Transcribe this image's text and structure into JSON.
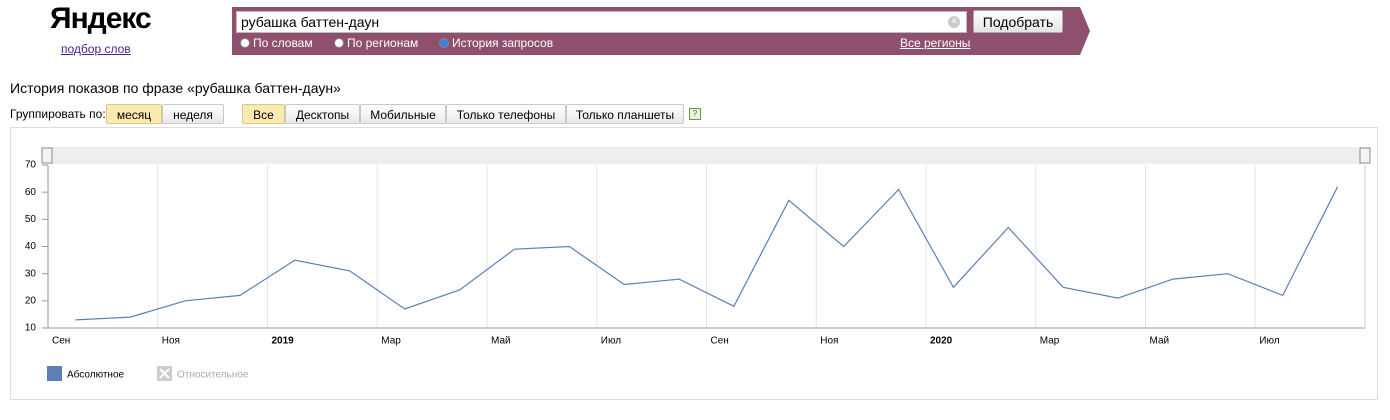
{
  "header": {
    "logo": "Яндекс",
    "sublink": "подбор слов",
    "query": "рубашка баттен-даун",
    "button": "Подобрать",
    "radios": [
      "По словам",
      "По регионам",
      "История запросов"
    ],
    "region_link": "Все регионы"
  },
  "heading": "История показов по фразе «рубашка баттен-даун»",
  "group_label": "Группировать по:",
  "group_options": [
    "месяц",
    "неделя"
  ],
  "device_options": [
    "Все",
    "Десктопы",
    "Мобильные",
    "Только телефоны",
    "Только планшеты"
  ],
  "help": "?",
  "chart_data": {
    "type": "line",
    "categories": [
      "Сен",
      null,
      "Ноя",
      null,
      "2019",
      null,
      "Мар",
      null,
      "Май",
      null,
      "Июл",
      null,
      "Сен",
      null,
      "Ноя",
      null,
      "2020",
      null,
      "Мар",
      null,
      "Май",
      null,
      "Июл",
      null
    ],
    "series": [
      {
        "name": "Абсолютное",
        "color": "#5b80b8",
        "values": [
          13,
          14,
          20,
          22,
          35,
          31,
          17,
          24,
          39,
          40,
          26,
          28,
          18,
          57,
          40,
          61,
          25,
          47,
          25,
          21,
          28,
          30,
          22,
          62
        ]
      }
    ],
    "disabled_series": "Относительное",
    "ylim": [
      10,
      70
    ],
    "yticks": [
      10,
      20,
      30,
      40,
      50,
      60,
      70
    ],
    "grid": true
  }
}
